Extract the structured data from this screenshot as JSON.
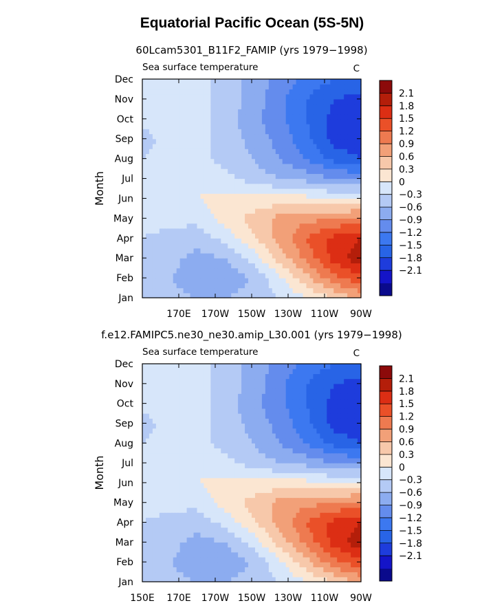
{
  "figure": {
    "title": "Equatorial Pacific Ocean (5S-5N)"
  },
  "colorbar": {
    "colors": [
      "#0a0a8c",
      "#1414c8",
      "#1e3cdc",
      "#2864e6",
      "#3c78f0",
      "#648ced",
      "#8cacf0",
      "#b4caf5",
      "#d7e6fa",
      "#fbe6d2",
      "#f7c8aa",
      "#f2a078",
      "#ee7a50",
      "#ea5028",
      "#dc2e14",
      "#b41e0a",
      "#8c0a0a"
    ],
    "levels": [
      -2.1,
      -1.8,
      -1.5,
      -1.2,
      -0.9,
      -0.6,
      -0.3,
      0,
      0.3,
      0.6,
      0.9,
      1.2,
      1.5,
      1.8,
      2.1
    ],
    "labels": [
      "2.1",
      "1.8",
      "1.5",
      "1.2",
      "0.9",
      "0.6",
      "0.3",
      "0",
      "−0.3",
      "−0.6",
      "−0.9",
      "−1.2",
      "−1.5",
      "−1.8",
      "−2.1"
    ]
  },
  "chart_data": [
    {
      "type": "heatmap",
      "title": "60Lcam5301_B11F2_FAMIP (yrs 1979−1998)",
      "left_label": "Sea surface temperature",
      "units": "C",
      "ylabel": "Month",
      "y_ticks": [
        "Jan",
        "Feb",
        "Mar",
        "Apr",
        "May",
        "Jun",
        "Jul",
        "Aug",
        "Sep",
        "Oct",
        "Nov",
        "Dec"
      ],
      "x_ticks": [
        "170E",
        "170W",
        "150W",
        "130W",
        "110W",
        "90W"
      ],
      "x_range_deg_east": [
        150,
        270
      ],
      "cols_lon_deg_east": [
        150,
        165,
        180,
        195,
        210,
        225,
        240,
        255,
        270
      ],
      "rows_month": [
        "Jan",
        "Feb",
        "Mar",
        "Apr",
        "May",
        "Jun",
        "Jul",
        "Aug",
        "Sep",
        "Oct",
        "Nov",
        "Dec"
      ],
      "values": [
        [
          -0.1,
          -0.2,
          -0.3,
          -0.3,
          -0.2,
          0.0,
          0.3,
          0.6,
          1.0
        ],
        [
          -0.1,
          -0.3,
          -0.5,
          -0.5,
          -0.3,
          0.2,
          0.8,
          1.4,
          1.7
        ],
        [
          0.0,
          -0.2,
          -0.4,
          -0.3,
          0.1,
          0.7,
          1.3,
          1.9,
          2.3
        ],
        [
          0.0,
          -0.1,
          -0.2,
          0.1,
          0.5,
          1.0,
          1.5,
          1.9,
          2.1
        ],
        [
          0.1,
          0.1,
          0.1,
          0.4,
          0.7,
          1.0,
          1.1,
          1.2,
          1.3
        ],
        [
          0.2,
          0.2,
          0.3,
          0.4,
          0.4,
          0.4,
          0.4,
          0.3,
          0.3
        ],
        [
          0.2,
          0.2,
          0.2,
          0.1,
          -0.1,
          -0.3,
          -0.4,
          -0.6,
          -0.6
        ],
        [
          0.0,
          0.1,
          0.1,
          -0.1,
          -0.3,
          -0.6,
          -0.9,
          -1.3,
          -1.5
        ],
        [
          -0.1,
          0.1,
          0.1,
          -0.1,
          -0.4,
          -0.7,
          -1.1,
          -1.6,
          -1.8
        ],
        [
          0.1,
          0.1,
          0.1,
          -0.1,
          -0.5,
          -0.8,
          -1.2,
          -1.6,
          -1.8
        ],
        [
          0.2,
          0.2,
          0.1,
          -0.1,
          -0.4,
          -0.8,
          -1.2,
          -1.5,
          -1.6
        ],
        [
          0.2,
          0.2,
          0.1,
          -0.1,
          -0.4,
          -0.7,
          -1.0,
          -1.2,
          -1.2
        ]
      ]
    },
    {
      "type": "heatmap",
      "title": "f.e12.FAMIPC5.ne30_ne30.amip_L30.001 (yrs 1979−1998)",
      "left_label": "Sea surface temperature",
      "units": "C",
      "ylabel": "Month",
      "y_ticks": [
        "Jan",
        "Feb",
        "Mar",
        "Apr",
        "May",
        "Jun",
        "Jul",
        "Aug",
        "Sep",
        "Oct",
        "Nov",
        "Dec"
      ],
      "x_ticks": [
        "150E",
        "170E",
        "170W",
        "150W",
        "130W",
        "110W",
        "90W"
      ],
      "x_range_deg_east": [
        150,
        270
      ],
      "cols_lon_deg_east": [
        150,
        165,
        180,
        195,
        210,
        225,
        240,
        255,
        270
      ],
      "rows_month": [
        "Jan",
        "Feb",
        "Mar",
        "Apr",
        "May",
        "Jun",
        "Jul",
        "Aug",
        "Sep",
        "Oct",
        "Nov",
        "Dec"
      ],
      "values": [
        [
          -0.1,
          -0.2,
          -0.3,
          -0.3,
          -0.2,
          0.0,
          0.3,
          0.6,
          1.0
        ],
        [
          -0.1,
          -0.3,
          -0.5,
          -0.5,
          -0.3,
          0.2,
          0.8,
          1.4,
          1.7
        ],
        [
          0.0,
          -0.2,
          -0.4,
          -0.3,
          0.1,
          0.7,
          1.3,
          1.9,
          2.3
        ],
        [
          0.0,
          -0.1,
          -0.2,
          0.1,
          0.5,
          1.0,
          1.5,
          1.9,
          2.1
        ],
        [
          0.1,
          0.1,
          0.1,
          0.4,
          0.7,
          1.0,
          1.1,
          1.2,
          1.3
        ],
        [
          0.2,
          0.2,
          0.3,
          0.4,
          0.4,
          0.4,
          0.4,
          0.3,
          0.3
        ],
        [
          0.2,
          0.2,
          0.2,
          0.1,
          -0.1,
          -0.3,
          -0.4,
          -0.6,
          -0.6
        ],
        [
          0.0,
          0.1,
          0.1,
          -0.1,
          -0.3,
          -0.6,
          -0.9,
          -1.3,
          -1.5
        ],
        [
          -0.1,
          0.1,
          0.1,
          -0.1,
          -0.4,
          -0.7,
          -1.1,
          -1.6,
          -1.8
        ],
        [
          0.1,
          0.1,
          0.1,
          -0.1,
          -0.5,
          -0.8,
          -1.2,
          -1.6,
          -1.8
        ],
        [
          0.2,
          0.2,
          0.1,
          -0.1,
          -0.4,
          -0.8,
          -1.2,
          -1.5,
          -1.6
        ],
        [
          0.2,
          0.2,
          0.1,
          -0.1,
          -0.4,
          -0.7,
          -1.0,
          -1.2,
          -1.2
        ]
      ]
    }
  ]
}
